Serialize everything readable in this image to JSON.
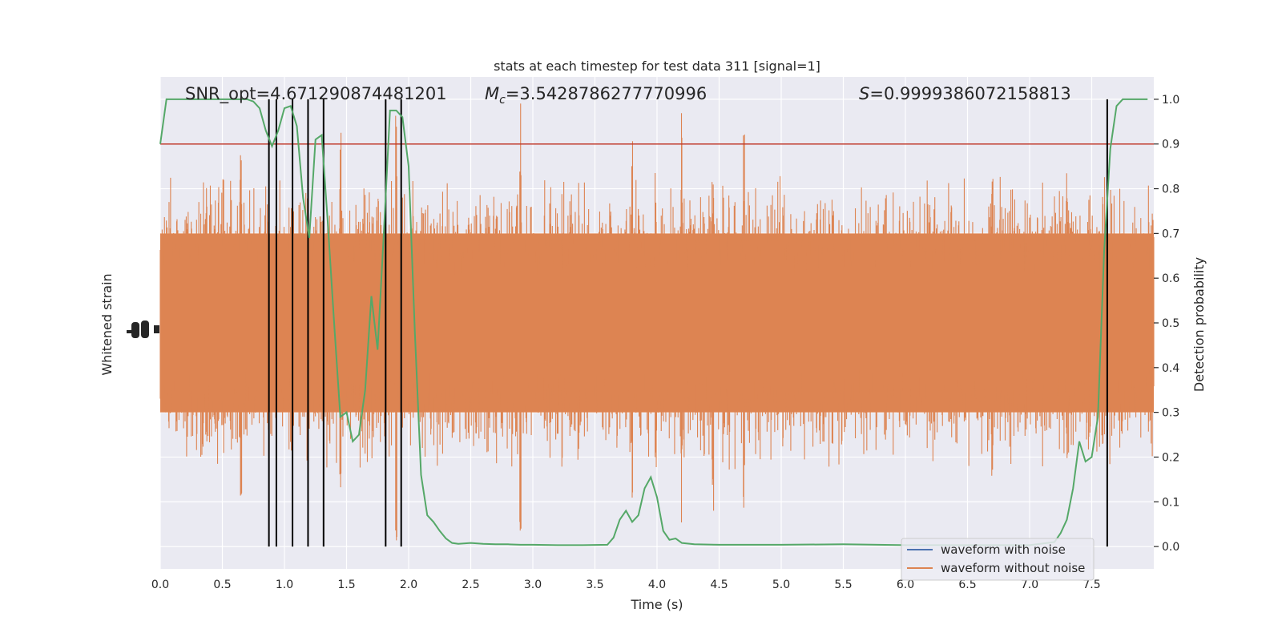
{
  "chart_data": {
    "type": "line",
    "title": "stats at each timestep for test data 311 [signal=1]",
    "xlabel": "Time (s)",
    "ylabel_left": "Whitened strain",
    "ylabel_right": "Detection probability",
    "xlim": [
      0,
      8
    ],
    "ylim_right": [
      -0.05,
      1.05
    ],
    "x_ticks": [
      "0.0",
      "0.5",
      "1.0",
      "1.5",
      "2.0",
      "2.5",
      "3.0",
      "3.5",
      "4.0",
      "4.5",
      "5.0",
      "5.5",
      "6.0",
      "6.5",
      "7.0",
      "7.5"
    ],
    "x_tick_values": [
      0,
      0.5,
      1.0,
      1.5,
      2.0,
      2.5,
      3.0,
      3.5,
      4.0,
      4.5,
      5.0,
      5.5,
      6.0,
      6.5,
      7.0,
      7.5
    ],
    "y_right_ticks": [
      "0.0",
      "0.1",
      "0.2",
      "0.3",
      "0.4",
      "0.5",
      "0.6",
      "0.7",
      "0.8",
      "0.9",
      "1.0"
    ],
    "y_right_tick_values": [
      0,
      0.1,
      0.2,
      0.3,
      0.4,
      0.5,
      0.6,
      0.7,
      0.8,
      0.9,
      1.0
    ],
    "annotations": {
      "snr": "SNR_opt=4.671290874481201",
      "mc_symbol": "M",
      "mc_sub": "c",
      "mc_value": "=3.5428786277770996",
      "s_symbol": "S",
      "s_value": "=0.9999386072158813"
    },
    "threshold": {
      "value": 0.9,
      "color": "#c0392b"
    },
    "trigger_lines_x": [
      0.875,
      0.935,
      1.065,
      1.19,
      1.315,
      1.815,
      1.94,
      7.625
    ],
    "legend": {
      "position": "lower-right",
      "entries": [
        {
          "label": "waveform with noise",
          "color": "#4c72b0"
        },
        {
          "label": "waveform without noise",
          "color": "#dd8452"
        }
      ]
    },
    "series": [
      {
        "color": "#dd8452",
        "envelope": {
          "dense_band": [
            0.3,
            0.7
          ],
          "spike_peaks": [
            [
              0.2,
              0.28
            ],
            [
              1.9,
              1.0
            ],
            [
              3.8,
              0.98
            ],
            [
              4.2,
              0.98
            ],
            [
              4.7,
              0.93
            ],
            [
              7.3,
              0.91
            ],
            [
              0.65,
              0.1
            ],
            [
              1.45,
              0.04
            ],
            [
              2.9,
              0.0
            ],
            [
              4.45,
              0.08
            ],
            [
              6.7,
              0.09
            ]
          ]
        }
      },
      {
        "color": "#55a868",
        "x": [
          0,
          0.05,
          0.1,
          0.2,
          0.3,
          0.4,
          0.5,
          0.6,
          0.7,
          0.75,
          0.8,
          0.85,
          0.9,
          0.95,
          1.0,
          1.05,
          1.1,
          1.15,
          1.2,
          1.25,
          1.3,
          1.35,
          1.4,
          1.45,
          1.5,
          1.55,
          1.6,
          1.65,
          1.7,
          1.75,
          1.8,
          1.85,
          1.9,
          1.95,
          2.0,
          2.05,
          2.1,
          2.15,
          2.2,
          2.25,
          2.3,
          2.35,
          2.4,
          2.5,
          2.6,
          2.7,
          2.8,
          2.9,
          3.0,
          3.2,
          3.4,
          3.6,
          3.65,
          3.7,
          3.75,
          3.8,
          3.85,
          3.9,
          3.95,
          4.0,
          4.05,
          4.1,
          4.15,
          4.2,
          4.3,
          4.5,
          5.0,
          5.5,
          6.0,
          6.5,
          7.0,
          7.2,
          7.25,
          7.3,
          7.35,
          7.4,
          7.45,
          7.5,
          7.55,
          7.6,
          7.65,
          7.7,
          7.75,
          7.8,
          7.85,
          7.95
        ],
        "y": [
          0.9,
          1.0,
          1.0,
          1.0,
          1.0,
          1.0,
          1.0,
          1.0,
          1.0,
          0.995,
          0.98,
          0.93,
          0.895,
          0.93,
          0.98,
          0.985,
          0.94,
          0.78,
          0.69,
          0.91,
          0.92,
          0.72,
          0.5,
          0.29,
          0.3,
          0.235,
          0.25,
          0.35,
          0.56,
          0.44,
          0.7,
          0.975,
          0.975,
          0.96,
          0.85,
          0.48,
          0.16,
          0.07,
          0.055,
          0.035,
          0.018,
          0.008,
          0.006,
          0.008,
          0.006,
          0.005,
          0.005,
          0.004,
          0.004,
          0.003,
          0.003,
          0.004,
          0.02,
          0.06,
          0.08,
          0.055,
          0.07,
          0.13,
          0.155,
          0.11,
          0.035,
          0.015,
          0.018,
          0.008,
          0.005,
          0.004,
          0.004,
          0.005,
          0.003,
          0.003,
          0.003,
          0.01,
          0.03,
          0.06,
          0.13,
          0.235,
          0.19,
          0.2,
          0.29,
          0.66,
          0.89,
          0.985,
          1.0,
          1.0,
          1.0,
          1.0
        ]
      }
    ]
  }
}
